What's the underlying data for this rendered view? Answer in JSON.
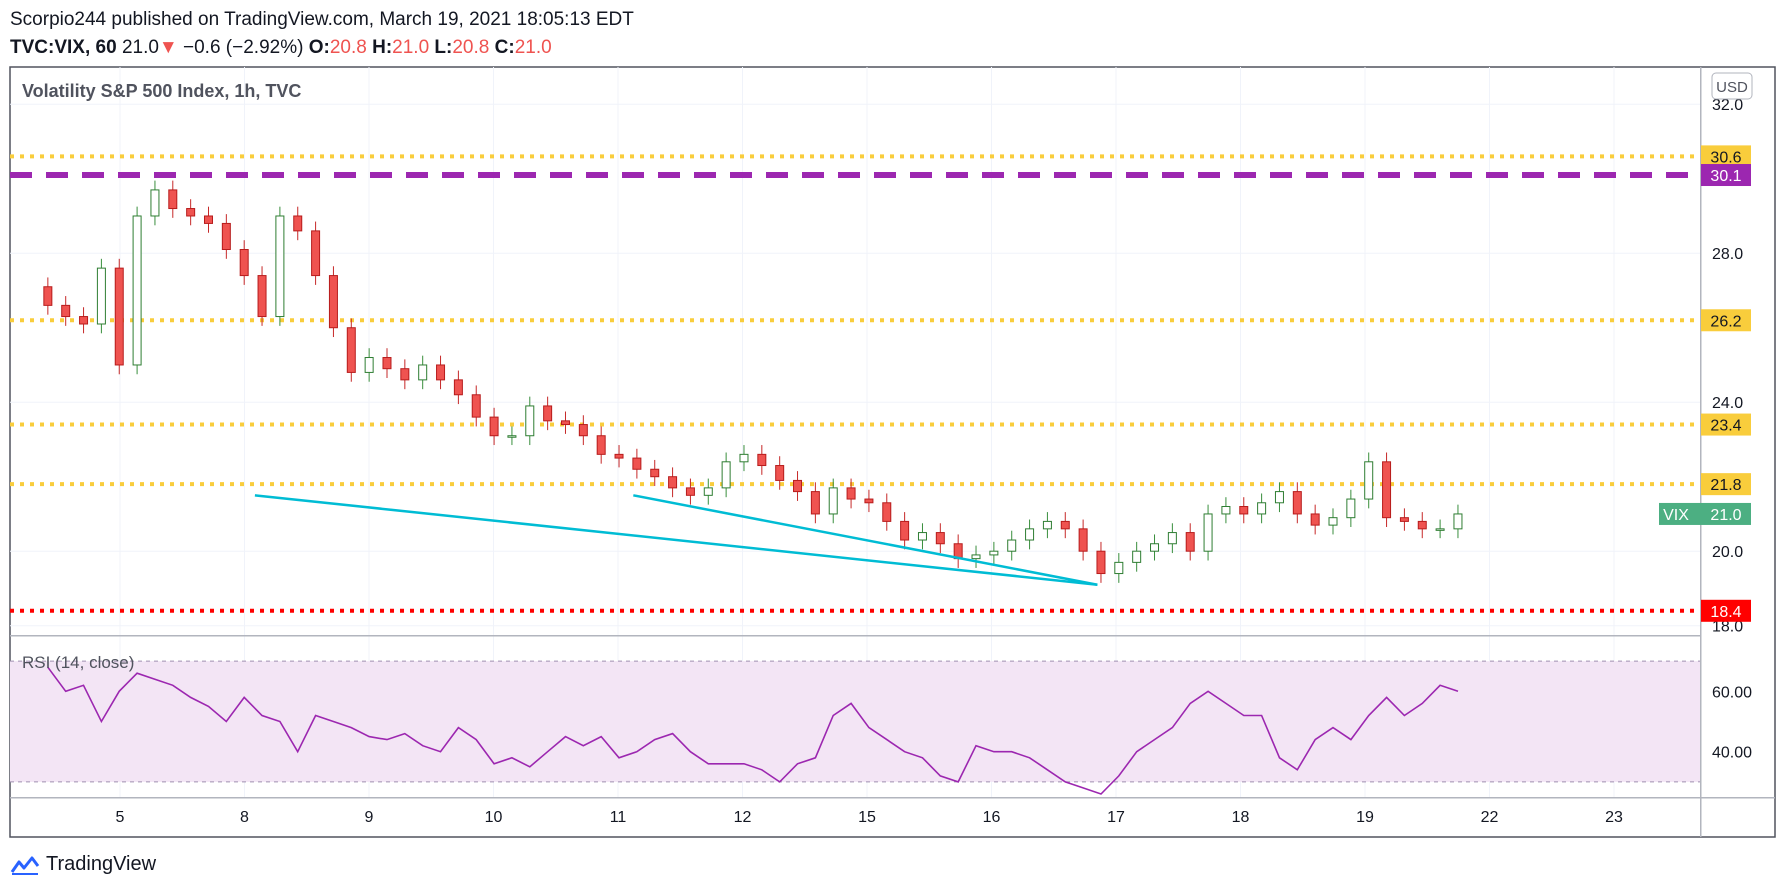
{
  "header": {
    "publisher_line": "Scorpio244 published on TradingView.com, March 19, 2021 18:05:13 EDT",
    "symbol": "TVC:VIX, 60",
    "last": "21.0",
    "down_arrow": "▼",
    "change": "−0.6 (−2.92%)",
    "o_label": "O:",
    "o_value": "20.8",
    "h_label": "H:",
    "h_value": "21.0",
    "l_label": "L:",
    "l_value": "20.8",
    "c_label": "C:",
    "c_value": "21.0"
  },
  "footer": {
    "brand": "TradingView"
  },
  "colors": {
    "up": "#26a69a",
    "down": "#ef5350",
    "candle_up_fill": "#ffffff",
    "candle_down_fill": "#ef5350",
    "yellow_dotted": "#f9cd3c",
    "purple_dash": "#9c27b0",
    "red_dotted": "#ff0000",
    "trendline": "#00bcd4",
    "rsi_line": "#9c27b0",
    "rsi_band": "#f3e5f5"
  },
  "chart_data": [
    {
      "type": "candlestick",
      "title": "Volatility S&P 500 Index, 1h, TVC",
      "currency": "USD",
      "ylim": [
        17.75,
        33.0
      ],
      "y_ticks": [
        "32.0",
        "28.0",
        "24.0",
        "20.0",
        "18.0"
      ],
      "x_ticks": [
        "5",
        "8",
        "9",
        "10",
        "11",
        "12",
        "15",
        "16",
        "17",
        "18",
        "19",
        "22",
        "23"
      ],
      "grid": true,
      "last_price_label": {
        "symbol": "VIX",
        "value": "21.0"
      },
      "horizontal_lines": [
        {
          "price": 30.6,
          "label": "30.6",
          "style": "dotted",
          "color": "#f9cd3c"
        },
        {
          "price": 30.1,
          "label": "30.1",
          "style": "dashed",
          "color": "#9c27b0"
        },
        {
          "price": 26.2,
          "label": "26.2",
          "style": "dotted",
          "color": "#f9cd3c"
        },
        {
          "price": 23.4,
          "label": "23.4",
          "style": "dotted",
          "color": "#f9cd3c"
        },
        {
          "price": 21.8,
          "label": "21.8",
          "style": "dotted",
          "color": "#f9cd3c"
        },
        {
          "price": 18.4,
          "label": "18.4",
          "style": "dotted",
          "color": "#ff0000"
        }
      ],
      "trendlines": [
        {
          "from": [
            5.8,
            21.5
          ],
          "to": [
            29.4,
            19.1
          ]
        },
        {
          "from": [
            16.4,
            21.5
          ],
          "to": [
            29.4,
            19.1
          ]
        }
      ],
      "x": [
        0,
        0.5,
        1,
        1.5,
        2,
        2.5,
        3,
        3.5,
        4,
        4.5,
        5,
        5.5,
        6,
        6.5,
        7,
        7.5,
        8,
        8.5,
        9,
        9.5,
        10,
        10.5,
        11,
        11.5,
        12,
        12.5,
        13,
        13.5,
        14,
        14.5,
        15,
        15.5,
        16,
        16.5,
        17,
        17.5,
        18,
        18.5,
        19,
        19.5,
        20,
        20.5,
        21,
        21.5,
        22,
        22.5,
        23,
        23.5,
        24,
        24.5,
        25,
        25.5,
        26,
        26.5,
        27,
        27.5,
        28,
        28.5,
        29,
        29.5,
        30,
        30.5,
        31,
        31.5,
        32,
        32.5,
        33,
        33.5,
        34,
        34.5,
        35,
        35.5,
        36,
        36.5,
        37,
        37.5,
        38,
        38.5,
        39,
        39.5
      ],
      "open": [
        27.1,
        26.6,
        26.3,
        26.1,
        27.6,
        25.0,
        29.0,
        29.7,
        29.2,
        29.0,
        28.8,
        28.1,
        27.4,
        26.3,
        29.0,
        28.6,
        27.4,
        26.0,
        24.8,
        25.2,
        24.9,
        24.6,
        25.0,
        24.6,
        24.2,
        23.6,
        23.1,
        23.1,
        23.9,
        23.5,
        23.4,
        23.1,
        22.6,
        22.5,
        22.2,
        22.0,
        21.7,
        21.5,
        21.7,
        22.4,
        22.6,
        22.3,
        21.9,
        21.6,
        21.0,
        21.7,
        21.4,
        21.3,
        20.8,
        20.3,
        20.5,
        20.2,
        19.8,
        19.9,
        20.0,
        20.3,
        20.6,
        20.8,
        20.6,
        20.0,
        19.4,
        19.7,
        20.0,
        20.2,
        20.5,
        20.0,
        21.0,
        21.2,
        21.0,
        21.3,
        21.6,
        21.0,
        20.7,
        20.9,
        21.4,
        22.4,
        20.9,
        20.8,
        20.6,
        20.6
      ],
      "close": [
        26.6,
        26.3,
        26.1,
        27.6,
        25.0,
        29.0,
        29.7,
        29.2,
        29.0,
        28.8,
        28.1,
        27.4,
        26.3,
        29.0,
        28.6,
        27.4,
        26.0,
        24.8,
        25.2,
        24.9,
        24.6,
        25.0,
        24.6,
        24.2,
        23.6,
        23.1,
        23.1,
        23.9,
        23.5,
        23.4,
        23.1,
        22.6,
        22.5,
        22.2,
        22.0,
        21.7,
        21.5,
        21.7,
        22.4,
        22.6,
        22.3,
        21.9,
        21.6,
        21.0,
        21.7,
        21.4,
        21.3,
        20.8,
        20.3,
        20.5,
        20.2,
        19.8,
        19.9,
        20.0,
        20.3,
        20.6,
        20.8,
        20.6,
        20.0,
        19.4,
        19.7,
        20.0,
        20.2,
        20.5,
        20.0,
        21.0,
        21.2,
        21.0,
        21.3,
        21.6,
        21.0,
        20.7,
        20.9,
        21.4,
        22.4,
        20.9,
        20.8,
        20.6,
        20.6,
        21.0
      ],
      "rsi": {
        "title": "RSI (14, close)",
        "ylim": [
          25,
          78
        ],
        "y_ticks": [
          "60.00",
          "40.00"
        ],
        "band": [
          30,
          70
        ],
        "values": [
          68,
          60,
          62,
          50,
          60,
          66,
          64,
          62,
          58,
          55,
          50,
          58,
          52,
          50,
          40,
          52,
          50,
          48,
          45,
          44,
          46,
          42,
          40,
          48,
          44,
          36,
          38,
          35,
          40,
          45,
          42,
          45,
          38,
          40,
          44,
          46,
          40,
          36,
          36,
          36,
          34,
          30,
          36,
          38,
          52,
          56,
          48,
          44,
          40,
          38,
          32,
          30,
          42,
          40,
          40,
          38,
          34,
          30,
          28,
          26,
          32,
          40,
          44,
          48,
          56,
          60,
          56,
          52,
          52,
          38,
          34,
          44,
          48,
          44,
          52,
          58,
          52,
          56,
          62,
          60
        ]
      }
    }
  ]
}
